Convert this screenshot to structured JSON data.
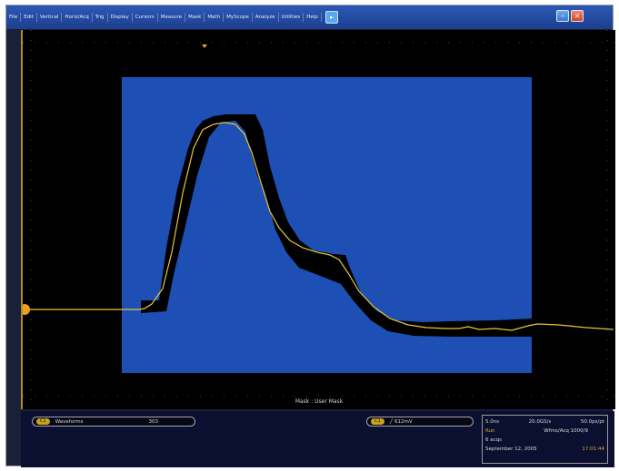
{
  "menu": {
    "items": [
      "File",
      "Edit",
      "Vertical",
      "Horiz/Acq",
      "Trig",
      "Display",
      "Cursors",
      "Measure",
      "Mask",
      "Math",
      "MyScope",
      "Analyze",
      "Utilities",
      "Help"
    ],
    "help_label": "▸"
  },
  "window": {
    "min_label": "–",
    "close_label": "×"
  },
  "plot": {
    "mask_label": "Mask : User Mask",
    "colors": {
      "mask_fill": "#1d4fb5",
      "trace": "#e8c43a",
      "envelope": "#000000",
      "marker": "#f0a020"
    }
  },
  "bottom": {
    "measure": {
      "channel": "C1",
      "label": "Waveforms",
      "value": "303"
    },
    "trigger": {
      "channel": "C1",
      "value": "612mV"
    },
    "acquisition": {
      "timebase": "5.0ns",
      "sample_rate": "20.0GS/s",
      "resolution": "50.0ps/pt",
      "state": "Run",
      "wfms_label": "Wfms/Acq 1000/9",
      "acqs": "6 acqs",
      "date": "September 12, 2005",
      "time": "17:01:44"
    }
  }
}
